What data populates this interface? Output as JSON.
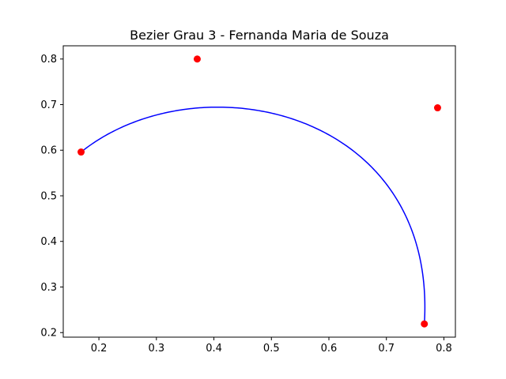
{
  "chart_data": {
    "type": "line",
    "title": "Bezier Grau 3 - Fernanda Maria de Souza",
    "xlabel": "",
    "ylabel": "",
    "xlim": [
      0.138,
      0.82
    ],
    "ylim": [
      0.19,
      0.829
    ],
    "x_ticks": [
      0.2,
      0.3,
      0.4,
      0.5,
      0.6,
      0.7,
      0.8
    ],
    "x_tick_labels": [
      "0.2",
      "0.3",
      "0.4",
      "0.5",
      "0.6",
      "0.7",
      "0.8"
    ],
    "y_ticks": [
      0.2,
      0.3,
      0.4,
      0.5,
      0.6,
      0.7,
      0.8
    ],
    "y_tick_labels": [
      "0.2",
      "0.3",
      "0.4",
      "0.5",
      "0.6",
      "0.7",
      "0.8"
    ],
    "grid": false,
    "series": [
      {
        "kind": "cubic-bezier-curve",
        "color": "#0000ff",
        "control_points": [
          [
            0.169,
            0.596
          ],
          [
            0.371,
            0.8
          ],
          [
            0.789,
            0.693
          ],
          [
            0.766,
            0.219
          ]
        ]
      },
      {
        "kind": "points",
        "color": "#ff0000",
        "x": [
          0.169,
          0.371,
          0.789,
          0.766
        ],
        "y": [
          0.596,
          0.8,
          0.693,
          0.219
        ]
      }
    ]
  }
}
